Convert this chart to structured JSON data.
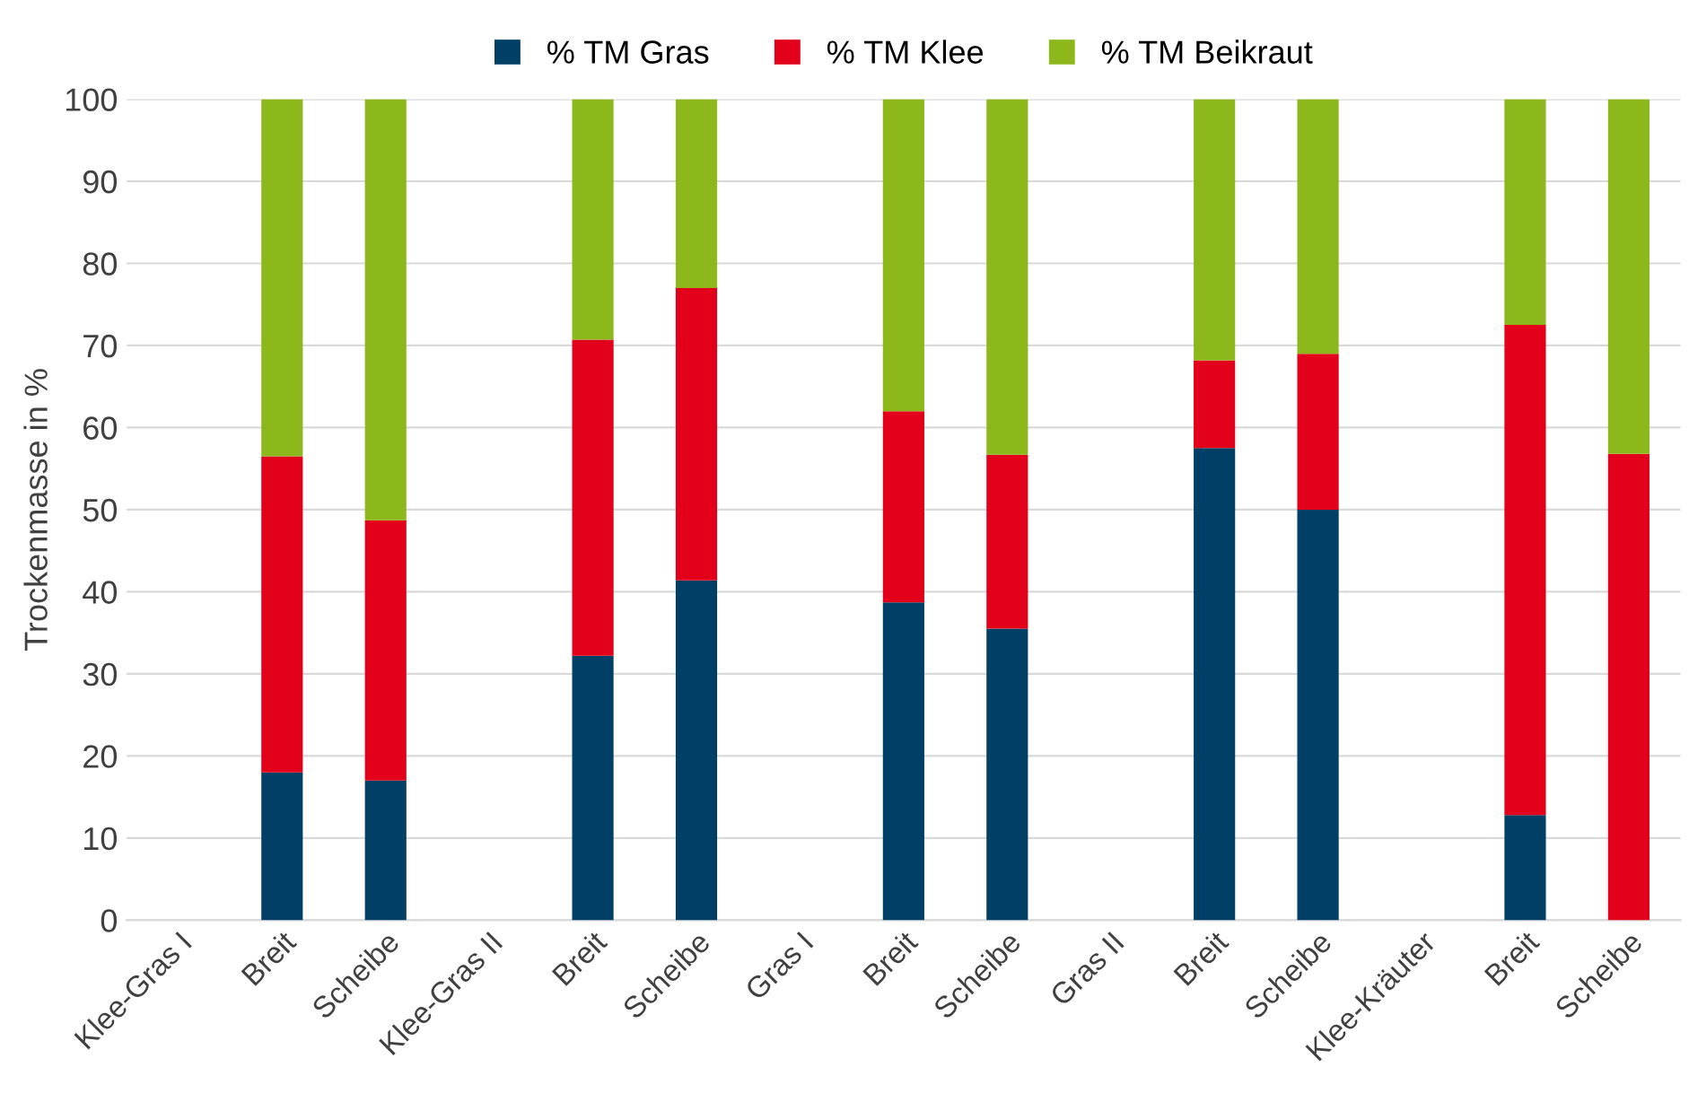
{
  "chart_data": {
    "type": "bar",
    "stacked": true,
    "ylabel": "Trockenmasse in %",
    "categories": [
      "Klee-Gras I",
      "Breit",
      "Scheibe",
      "Klee-Gras II",
      "Breit",
      "Scheibe",
      "Gras I",
      "Breit",
      "Scheibe",
      "Gras II",
      "Breit",
      "Scheibe",
      "Klee-Kräuter",
      "Breit",
      "Scheibe"
    ],
    "series": [
      {
        "name": "% TM Gras",
        "color": "#003f66",
        "values": [
          null,
          18,
          17,
          null,
          32.2,
          41.4,
          null,
          38.7,
          35.5,
          null,
          57.5,
          50,
          null,
          12.8,
          0
        ]
      },
      {
        "name": "% TM Klee",
        "color": "#e2001a",
        "values": [
          null,
          38.5,
          31.7,
          null,
          38.5,
          35.6,
          null,
          23.3,
          21.2,
          null,
          10.7,
          19,
          null,
          59.7,
          56.8
        ]
      },
      {
        "name": "% TM Beikraut",
        "color": "#8cb81c",
        "values": [
          null,
          43.5,
          51.3,
          null,
          29.3,
          23,
          null,
          38,
          43.3,
          null,
          31.8,
          31,
          null,
          27.5,
          43.2
        ]
      }
    ],
    "ylim": [
      0,
      100
    ],
    "yticks": [
      0,
      10,
      20,
      30,
      40,
      50,
      60,
      70,
      80,
      90,
      100
    ],
    "grid": "y",
    "legend": "top"
  }
}
